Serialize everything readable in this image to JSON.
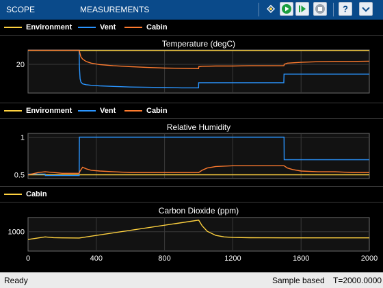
{
  "toolstrip": {
    "tabs": [
      {
        "label": "SCOPE"
      },
      {
        "label": "MEASUREMENTS"
      }
    ],
    "icons": [
      "highlight-signal-icon",
      "run-icon",
      "step-forward-icon",
      "stop-icon",
      "help-icon",
      "expand-icon"
    ]
  },
  "legends": [
    {
      "items": [
        {
          "label": "Environment",
          "color": "#ffd23f"
        },
        {
          "label": "Vent",
          "color": "#2a95ff"
        },
        {
          "label": "Cabin",
          "color": "#ff7b2e"
        }
      ]
    },
    {
      "items": [
        {
          "label": "Environment",
          "color": "#ffd23f"
        },
        {
          "label": "Vent",
          "color": "#2a95ff"
        },
        {
          "label": "Cabin",
          "color": "#ff7b2e"
        }
      ]
    },
    {
      "items": [
        {
          "label": "Cabin",
          "color": "#ffd23f"
        }
      ]
    }
  ],
  "chart_data": [
    {
      "type": "line",
      "title": "Temperature (degC)",
      "xlim": [
        0,
        2000
      ],
      "ylim": [
        10,
        25
      ],
      "yticks": [
        20
      ],
      "grid": true,
      "series": [
        {
          "name": "Environment",
          "color": "#ffd23f",
          "x": [
            0,
            2000
          ],
          "y": [
            24.8,
            24.8
          ]
        },
        {
          "name": "Vent",
          "color": "#2a95ff",
          "x": [
            0,
            300,
            301,
            305,
            310,
            320,
            340,
            370,
            420,
            500,
            600,
            700,
            800,
            900,
            999,
            1000,
            1001,
            1200,
            1499,
            1500,
            1501,
            2000
          ],
          "y": [
            24.9,
            24.9,
            19.0,
            15.0,
            13.8,
            13.2,
            12.9,
            12.7,
            12.5,
            12.3,
            12.1,
            12.0,
            11.9,
            11.8,
            11.8,
            13.6,
            13.6,
            13.6,
            13.6,
            16.6,
            16.6,
            16.6
          ]
        },
        {
          "name": "Cabin",
          "color": "#ff7b2e",
          "x": [
            0,
            300,
            301,
            310,
            320,
            340,
            370,
            420,
            500,
            600,
            700,
            800,
            900,
            999,
            1000,
            1001,
            1020,
            1100,
            1200,
            1300,
            1400,
            1499,
            1500,
            1501,
            1520,
            1600,
            1700,
            1800,
            1900,
            2000
          ],
          "y": [
            24.9,
            24.9,
            24.5,
            22.6,
            21.8,
            21.0,
            20.4,
            19.9,
            19.5,
            19.2,
            18.9,
            18.7,
            18.6,
            18.5,
            18.7,
            19.2,
            19.3,
            19.4,
            19.4,
            19.5,
            19.5,
            19.5,
            19.6,
            20.0,
            20.4,
            20.7,
            20.9,
            21.0,
            21.0,
            21.1
          ]
        }
      ]
    },
    {
      "type": "line",
      "title": "Relative Humidity",
      "xlim": [
        0,
        2000
      ],
      "ylim": [
        0.45,
        1.05
      ],
      "yticks": [
        0.5,
        1
      ],
      "grid": true,
      "series": [
        {
          "name": "Environment",
          "color": "#ffd23f",
          "x": [
            0,
            2000
          ],
          "y": [
            0.5,
            0.5
          ]
        },
        {
          "name": "Vent",
          "color": "#2a95ff",
          "x": [
            0,
            100,
            101,
            300,
            301,
            1500,
            1501,
            2000
          ],
          "y": [
            0.51,
            0.51,
            0.49,
            0.49,
            1.0,
            1.0,
            0.7,
            0.7
          ]
        },
        {
          "name": "Cabin",
          "color": "#ff7b2e",
          "x": [
            0,
            60,
            100,
            150,
            200,
            250,
            300,
            305,
            320,
            340,
            370,
            420,
            500,
            600,
            700,
            800,
            900,
            1000,
            1020,
            1050,
            1100,
            1200,
            1300,
            1400,
            1500,
            1520,
            1550,
            1600,
            1700,
            1800,
            1900,
            2000
          ],
          "y": [
            0.5,
            0.53,
            0.54,
            0.53,
            0.52,
            0.52,
            0.52,
            0.55,
            0.6,
            0.58,
            0.56,
            0.55,
            0.54,
            0.53,
            0.53,
            0.53,
            0.53,
            0.53,
            0.56,
            0.59,
            0.61,
            0.62,
            0.62,
            0.62,
            0.62,
            0.59,
            0.57,
            0.55,
            0.54,
            0.54,
            0.53,
            0.53
          ]
        }
      ]
    },
    {
      "type": "line",
      "title": "Carbon Dioxide (ppm)",
      "xlim": [
        0,
        2000
      ],
      "ylim": [
        480,
        1380
      ],
      "yticks": [
        1000
      ],
      "xticks": [
        0,
        400,
        800,
        1200,
        1600,
        2000
      ],
      "grid": true,
      "series": [
        {
          "name": "Cabin",
          "color": "#ffd23f",
          "x": [
            0,
            100,
            150,
            200,
            250,
            300,
            1000,
            1020,
            1050,
            1100,
            1150,
            1200,
            1300,
            1400,
            1500,
            2000
          ],
          "y": [
            790,
            860,
            840,
            835,
            832,
            830,
            1310,
            1160,
            1010,
            900,
            860,
            845,
            838,
            836,
            835,
            835
          ]
        }
      ]
    }
  ],
  "status": {
    "left": "Ready",
    "mode": "Sample based",
    "time": "T=2000.0000"
  }
}
